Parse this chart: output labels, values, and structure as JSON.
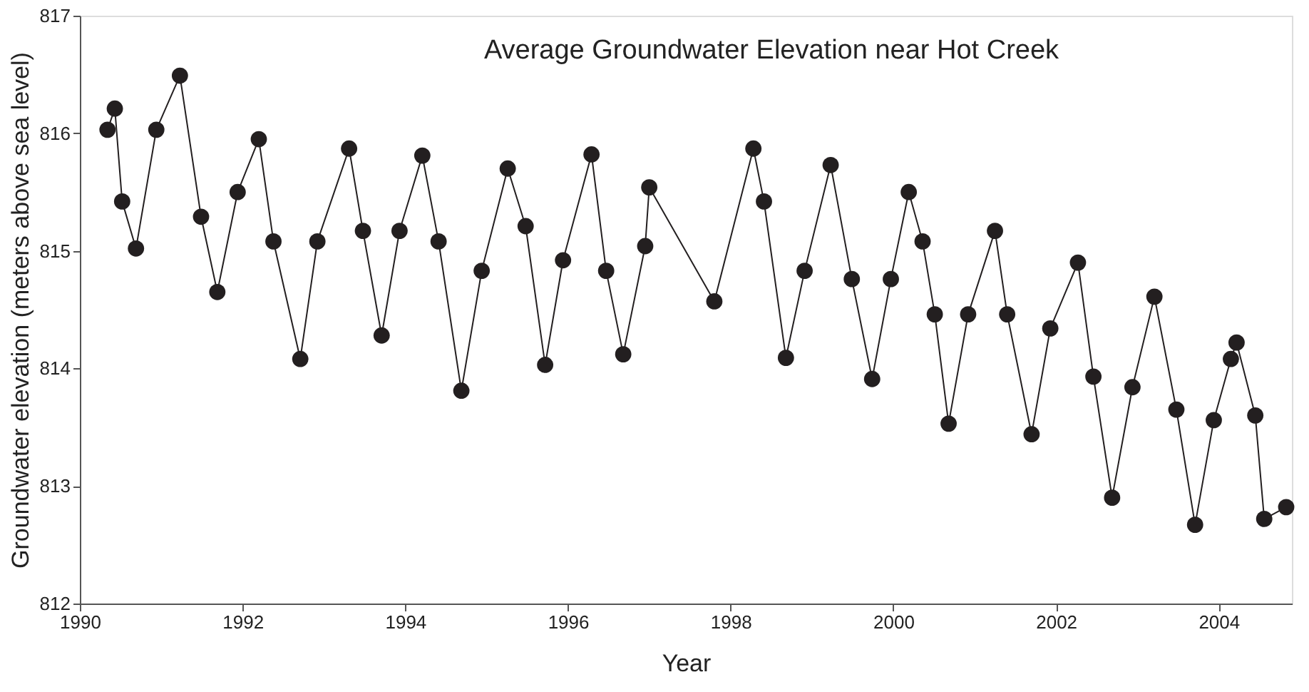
{
  "chart_data": {
    "type": "line",
    "title": "Average Groundwater Elevation near Hot Creek",
    "xlabel": "Year",
    "ylabel": "Groundwater elevation (meters above sea level)",
    "x": [
      1990.34,
      1990.43,
      1990.52,
      1990.69,
      1990.94,
      1991.23,
      1991.49,
      1991.69,
      1991.94,
      1992.2,
      1992.38,
      1992.71,
      1992.92,
      1993.31,
      1993.48,
      1993.71,
      1993.93,
      1994.21,
      1994.41,
      1994.69,
      1994.94,
      1995.26,
      1995.48,
      1995.72,
      1995.94,
      1996.29,
      1996.47,
      1996.68,
      1996.95,
      1997.0,
      1997.8,
      1998.28,
      1998.41,
      1998.68,
      1998.91,
      1999.23,
      1999.49,
      1999.74,
      1999.97,
      2000.19,
      2000.36,
      2000.51,
      2000.68,
      2000.92,
      2001.25,
      2001.4,
      2001.7,
      2001.93,
      2002.27,
      2002.46,
      2002.69,
      2002.94,
      2003.21,
      2003.48,
      2003.71,
      2003.94,
      2004.15,
      2004.22,
      2004.45,
      2004.56,
      2004.83
    ],
    "series": [
      {
        "color": "#231f20",
        "values": [
          816.03,
          816.21,
          815.42,
          815.02,
          816.03,
          816.49,
          815.29,
          814.65,
          815.5,
          815.95,
          815.08,
          814.08,
          815.08,
          815.87,
          815.17,
          814.28,
          815.17,
          815.81,
          815.08,
          813.81,
          814.83,
          815.7,
          815.21,
          814.03,
          814.92,
          815.82,
          814.83,
          814.12,
          815.04,
          815.54,
          814.57,
          815.87,
          815.42,
          814.09,
          814.83,
          815.73,
          814.76,
          813.91,
          814.76,
          815.5,
          815.08,
          814.46,
          813.53,
          814.46,
          815.17,
          814.46,
          813.44,
          814.34,
          814.9,
          813.93,
          812.9,
          813.84,
          814.61,
          813.65,
          812.67,
          813.56,
          814.08,
          814.22,
          813.6,
          812.72,
          812.82
        ]
      }
    ],
    "xlim": [
      1990,
      2004.9
    ],
    "xticks": [
      1990,
      1992,
      1994,
      1996,
      1998,
      2000,
      2002,
      2004
    ],
    "ylim": [
      812,
      817
    ],
    "yticks": [
      812,
      813,
      814,
      815,
      816,
      817
    ],
    "grid": false,
    "legend": false,
    "marker": "circle",
    "line_style": "solid"
  }
}
